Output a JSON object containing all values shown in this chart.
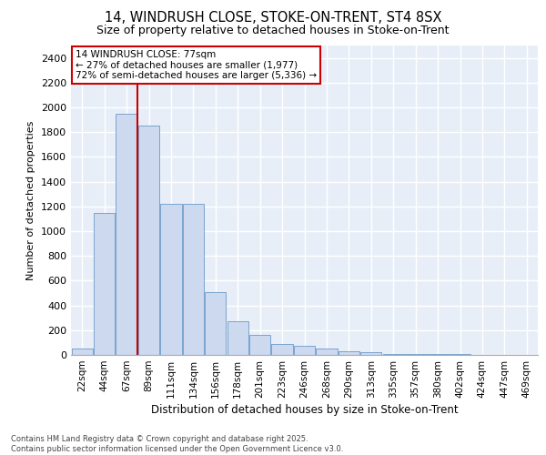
{
  "title1": "14, WINDRUSH CLOSE, STOKE-ON-TRENT, ST4 8SX",
  "title2": "Size of property relative to detached houses in Stoke-on-Trent",
  "xlabel": "Distribution of detached houses by size in Stoke-on-Trent",
  "ylabel": "Number of detached properties",
  "categories": [
    "22sqm",
    "44sqm",
    "67sqm",
    "89sqm",
    "111sqm",
    "134sqm",
    "156sqm",
    "178sqm",
    "201sqm",
    "223sqm",
    "246sqm",
    "268sqm",
    "290sqm",
    "313sqm",
    "335sqm",
    "357sqm",
    "380sqm",
    "402sqm",
    "424sqm",
    "447sqm",
    "469sqm"
  ],
  "values": [
    50,
    1150,
    1950,
    1850,
    1220,
    1220,
    510,
    270,
    160,
    90,
    75,
    50,
    30,
    20,
    10,
    5,
    5,
    5,
    2,
    2,
    2
  ],
  "bar_color": "#ccd9ef",
  "bar_edge_color": "#6a9ac8",
  "vline_color": "#cc0000",
  "annotation_text": "14 WINDRUSH CLOSE: 77sqm\n← 27% of detached houses are smaller (1,977)\n72% of semi-detached houses are larger (5,336) →",
  "annotation_box_color": "white",
  "annotation_box_edge": "#cc0000",
  "ylim": [
    0,
    2500
  ],
  "yticks": [
    0,
    200,
    400,
    600,
    800,
    1000,
    1200,
    1400,
    1600,
    1800,
    2000,
    2200,
    2400
  ],
  "bg_color": "#e8eef8",
  "grid_color": "white",
  "footer1": "Contains HM Land Registry data © Crown copyright and database right 2025.",
  "footer2": "Contains public sector information licensed under the Open Government Licence v3.0."
}
